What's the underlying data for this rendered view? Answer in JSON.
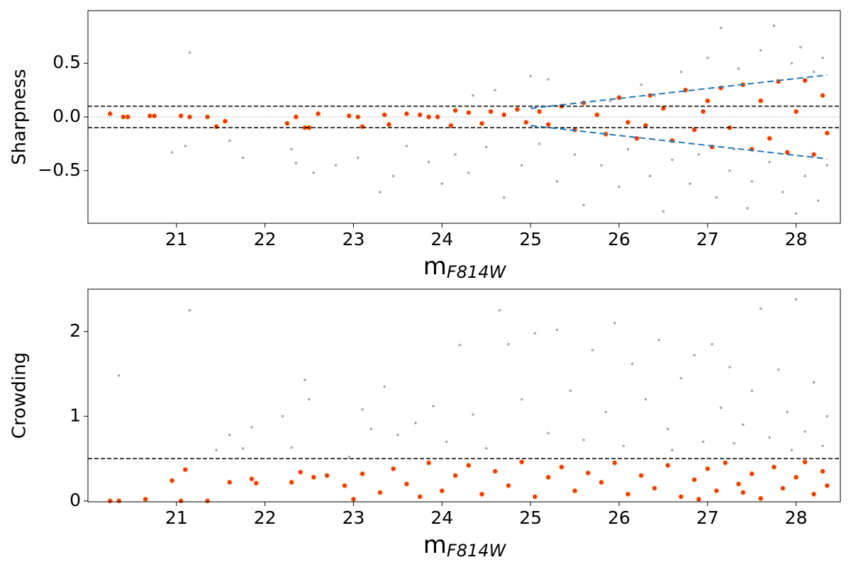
{
  "chart_data": [
    {
      "type": "scatter",
      "ylabel": "Sharpness",
      "xlabel": {
        "main": "m",
        "sub": "F814W"
      },
      "xlim": [
        20.0,
        28.5
      ],
      "xticks": [
        21,
        22,
        23,
        24,
        25,
        26,
        27,
        28
      ],
      "ylim": [
        -0.99,
        0.99
      ],
      "yticks": [
        {
          "value": -0.5,
          "label": "−0.5"
        },
        {
          "value": 0,
          "label": "0.0"
        },
        {
          "value": 0.5,
          "label": "0.5"
        }
      ],
      "hlines": [
        {
          "y": 0.1,
          "style": "dashed",
          "color": "#000000"
        },
        {
          "y": -0.1,
          "style": "dashed",
          "color": "#000000"
        },
        {
          "y": 0,
          "style": "dotted",
          "color": "#555555"
        }
      ],
      "bounds": {
        "color": "#1f77b4",
        "x": [
          25.0,
          28.35
        ],
        "upper": [
          0.08,
          0.39
        ],
        "lower": [
          -0.08,
          -0.39
        ]
      },
      "series": [
        {
          "color": "#a9a9a9",
          "x": [
            21.15,
            20.95,
            21.1,
            21.6,
            21.75,
            22.3,
            22.35,
            22.55,
            22.8,
            23.05,
            23.3,
            23.45,
            23.6,
            23.85,
            24.0,
            24.15,
            24.3,
            24.35,
            24.5,
            24.6,
            24.7,
            24.9,
            25.0,
            25.1,
            25.2,
            25.3,
            25.5,
            25.6,
            25.8,
            25.9,
            26.0,
            26.1,
            26.25,
            26.35,
            26.5,
            26.6,
            26.7,
            26.8,
            26.9,
            27.0,
            27.1,
            27.15,
            27.25,
            27.35,
            27.45,
            27.5,
            27.6,
            27.7,
            27.75,
            27.85,
            27.95,
            28.0,
            28.05,
            28.1,
            28.2,
            28.25,
            28.3,
            28.35,
            26.4,
            27.3
          ],
          "values": [
            0.6,
            -0.33,
            -0.27,
            -0.22,
            -0.38,
            -0.3,
            -0.43,
            -0.52,
            -0.45,
            -0.38,
            -0.7,
            -0.55,
            -0.27,
            -0.42,
            -0.62,
            -0.35,
            -0.52,
            0.2,
            -0.28,
            0.25,
            -0.75,
            -0.45,
            0.38,
            -0.25,
            0.35,
            -0.6,
            -0.35,
            -0.82,
            -0.45,
            0.15,
            -0.65,
            -0.3,
            0.3,
            -0.55,
            -0.88,
            -0.4,
            0.42,
            -0.62,
            -0.35,
            0.55,
            -0.75,
            0.83,
            -0.5,
            0.45,
            -0.85,
            -0.6,
            0.62,
            -0.42,
            0.85,
            -0.7,
            0.5,
            -0.9,
            0.65,
            -0.55,
            0.42,
            -0.78,
            0.55,
            -0.45,
            0.2,
            -0.3
          ]
        },
        {
          "color": "#e8321e",
          "edgecolor": "#ff7f0e",
          "x": [
            20.25,
            20.4,
            20.45,
            20.7,
            20.75,
            21.05,
            21.15,
            21.35,
            21.45,
            21.55,
            22.25,
            22.35,
            22.45,
            22.5,
            22.6,
            22.95,
            23.05,
            23.1,
            23.35,
            23.4,
            23.6,
            23.75,
            23.85,
            23.95,
            24.1,
            24.15,
            24.3,
            24.45,
            24.55,
            24.7,
            24.85,
            24.95,
            25.1,
            25.2,
            25.35,
            25.5,
            25.6,
            25.75,
            25.85,
            26.0,
            26.1,
            26.2,
            26.35,
            26.5,
            26.6,
            26.75,
            26.85,
            26.95,
            27.05,
            27.15,
            27.25,
            27.4,
            27.5,
            27.6,
            27.7,
            27.8,
            27.9,
            28.0,
            28.1,
            28.2,
            28.3,
            28.35,
            27.0,
            26.3
          ],
          "values": [
            0.03,
            0.0,
            0.0,
            0.01,
            0.01,
            0.01,
            0.0,
            0.0,
            -0.09,
            -0.04,
            -0.06,
            0.0,
            -0.1,
            -0.1,
            0.03,
            0.01,
            0.0,
            -0.09,
            0.02,
            -0.07,
            0.03,
            0.02,
            0.0,
            0.0,
            -0.08,
            0.06,
            0.04,
            -0.06,
            0.05,
            0.02,
            0.07,
            -0.05,
            0.05,
            -0.07,
            0.1,
            -0.12,
            0.13,
            0.02,
            -0.16,
            0.18,
            -0.05,
            -0.2,
            0.2,
            0.08,
            -0.22,
            0.25,
            -0.12,
            0.05,
            -0.28,
            0.27,
            -0.1,
            0.3,
            -0.3,
            0.15,
            -0.2,
            0.33,
            -0.33,
            0.05,
            0.34,
            -0.35,
            0.2,
            -0.15,
            0.15,
            -0.08
          ]
        }
      ]
    },
    {
      "type": "scatter",
      "ylabel": "Crowding",
      "xlabel": {
        "main": "m",
        "sub": "F814W"
      },
      "xlim": [
        20.0,
        28.5
      ],
      "xticks": [
        21,
        22,
        23,
        24,
        25,
        26,
        27,
        28
      ],
      "ylim": [
        -0.01,
        2.5
      ],
      "yticks": [
        0,
        1,
        2
      ],
      "hlines": [
        {
          "y": 0.5,
          "style": "dashed",
          "color": "#000000"
        }
      ],
      "series": [
        {
          "color": "#a9a9a9",
          "x": [
            20.35,
            21.15,
            21.45,
            21.6,
            21.75,
            21.85,
            22.2,
            22.3,
            22.45,
            22.5,
            22.95,
            23.1,
            23.2,
            23.35,
            23.5,
            23.7,
            23.9,
            24.05,
            24.2,
            24.35,
            24.5,
            24.65,
            24.75,
            24.9,
            25.05,
            25.2,
            25.3,
            25.45,
            25.6,
            25.7,
            25.85,
            25.95,
            26.05,
            26.15,
            26.3,
            26.45,
            26.55,
            26.7,
            26.85,
            26.95,
            27.05,
            27.15,
            27.25,
            27.4,
            27.5,
            27.6,
            27.7,
            27.8,
            27.9,
            28.0,
            28.1,
            28.2,
            28.3,
            28.35,
            26.6,
            27.3,
            27.95
          ],
          "values": [
            1.48,
            2.25,
            0.6,
            0.78,
            0.62,
            0.87,
            1.0,
            0.63,
            1.43,
            1.2,
            0.52,
            1.08,
            0.85,
            1.35,
            0.78,
            0.92,
            1.12,
            0.7,
            1.84,
            1.02,
            0.62,
            2.25,
            1.85,
            1.2,
            1.98,
            0.8,
            2.02,
            1.3,
            0.72,
            1.78,
            1.05,
            2.1,
            0.65,
            1.62,
            1.2,
            1.9,
            0.85,
            1.45,
            1.72,
            0.7,
            1.85,
            1.1,
            1.58,
            0.9,
            1.3,
            2.27,
            0.75,
            1.55,
            1.05,
            2.38,
            0.82,
            1.4,
            0.65,
            1.0,
            0.6,
            0.68,
            0.6
          ]
        },
        {
          "color": "#e8321e",
          "edgecolor": "#ff7f0e",
          "x": [
            20.25,
            20.35,
            20.65,
            20.95,
            21.05,
            21.1,
            21.35,
            21.6,
            21.85,
            21.9,
            22.3,
            22.4,
            22.55,
            22.7,
            22.9,
            23.0,
            23.1,
            23.3,
            23.45,
            23.6,
            23.75,
            23.85,
            24.0,
            24.15,
            24.3,
            24.45,
            24.6,
            24.75,
            24.9,
            25.05,
            25.2,
            25.35,
            25.5,
            25.65,
            25.8,
            25.95,
            26.1,
            26.25,
            26.4,
            26.55,
            26.7,
            26.85,
            27.0,
            27.1,
            27.2,
            27.35,
            27.5,
            27.6,
            27.75,
            27.85,
            28.0,
            28.1,
            28.2,
            28.3,
            28.35,
            26.9,
            27.4
          ],
          "values": [
            0.0,
            0.0,
            0.02,
            0.24,
            0.0,
            0.37,
            0.0,
            0.22,
            0.26,
            0.21,
            0.22,
            0.34,
            0.28,
            0.3,
            0.18,
            0.02,
            0.32,
            0.1,
            0.38,
            0.2,
            0.05,
            0.45,
            0.12,
            0.3,
            0.42,
            0.08,
            0.35,
            0.18,
            0.46,
            0.05,
            0.28,
            0.4,
            0.12,
            0.33,
            0.22,
            0.45,
            0.08,
            0.3,
            0.15,
            0.42,
            0.05,
            0.25,
            0.38,
            0.12,
            0.45,
            0.2,
            0.32,
            0.03,
            0.4,
            0.15,
            0.28,
            0.46,
            0.08,
            0.35,
            0.18,
            0.02,
            0.1
          ]
        }
      ]
    }
  ]
}
